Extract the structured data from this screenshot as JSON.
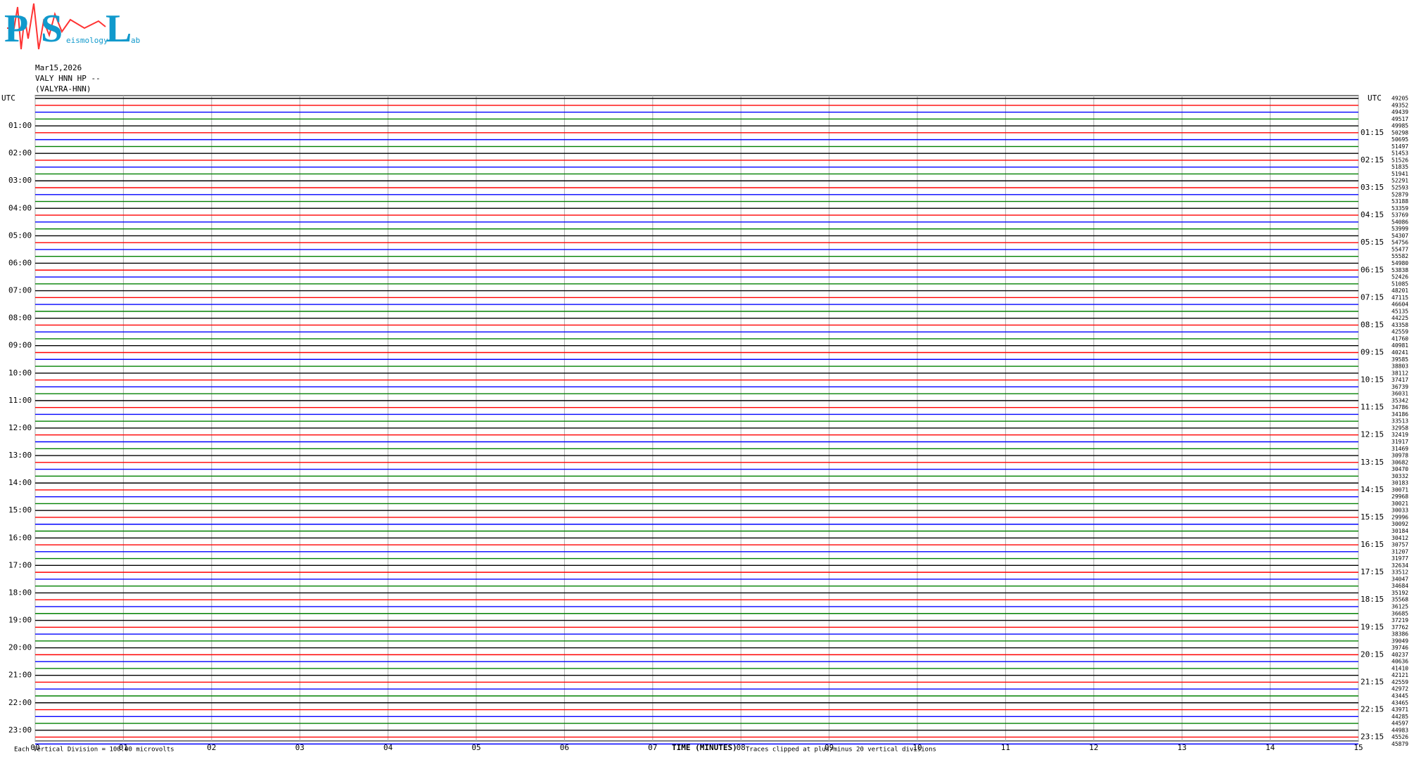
{
  "header": {
    "logo": [
      "P",
      "S",
      "eismology",
      "L",
      "ab"
    ]
  },
  "chart_data": {
    "type": "helicorder",
    "date": "Mar15,2026",
    "station": "VALY HNN HP --",
    "station_name": "(VALYRA-HNN)",
    "time_label": "UTC",
    "left_labels": [
      "01:00",
      "02:00",
      "03:00",
      "04:00",
      "05:00",
      "06:00",
      "07:00",
      "08:00",
      "09:00",
      "10:00",
      "11:00",
      "12:00",
      "13:00",
      "14:00",
      "15:00",
      "16:00",
      "17:00",
      "18:00",
      "19:00",
      "20:00",
      "21:00",
      "22:00",
      "23:00"
    ],
    "right_labels": [
      "01:15",
      "02:15",
      "03:15",
      "04:15",
      "05:15",
      "06:15",
      "07:15",
      "08:15",
      "09:15",
      "10:15",
      "11:15",
      "12:15",
      "13:15",
      "14:15",
      "15:15",
      "16:15",
      "17:15",
      "18:15",
      "19:15",
      "20:15",
      "21:15",
      "22:15",
      "23:15"
    ],
    "xlabel": "TIME (MINUTES)",
    "xlim": [
      0,
      15
    ],
    "xticks": [
      {
        "value": 0,
        "label": "00"
      },
      {
        "value": 1,
        "label": "01"
      },
      {
        "value": 2,
        "label": "02"
      },
      {
        "value": 3,
        "label": "03"
      },
      {
        "value": 4,
        "label": "04"
      },
      {
        "value": 5,
        "label": "05"
      },
      {
        "value": 6,
        "label": "06"
      },
      {
        "value": 7,
        "label": "07"
      },
      {
        "value": 8,
        "label": "08"
      },
      {
        "value": 9,
        "label": "09"
      },
      10,
      11,
      12,
      13,
      14,
      15
    ],
    "trace_colors": [
      "#000000",
      "#ff0000",
      "#0000ff",
      "#008000"
    ],
    "values": [
      49205,
      49352,
      49439,
      49517,
      49985,
      50298,
      50695,
      51497,
      51453,
      51526,
      51835,
      51941,
      52291,
      52593,
      52879,
      53188,
      53359,
      53769,
      54086,
      53999,
      54307,
      54756,
      55477,
      55582,
      54980,
      53838,
      52426,
      51085,
      48201,
      47115,
      46604,
      45135,
      44225,
      43358,
      42559,
      41760,
      40981,
      40241,
      39585,
      38803,
      38112,
      37417,
      36739,
      36031,
      35342,
      34786,
      34186,
      33513,
      32958,
      32419,
      31917,
      31469,
      30978,
      30682,
      30470,
      30332,
      30183,
      30071,
      29968,
      30021,
      30033,
      29996,
      30092,
      30184,
      30412,
      30757,
      31207,
      31977,
      32634,
      33512,
      34047,
      34684,
      35192,
      35568,
      36125,
      36685,
      37219,
      37762,
      38386,
      39049,
      39746,
      40237,
      40636,
      41410,
      42121,
      42559,
      42972,
      43445,
      43465,
      43971,
      44285,
      44597,
      44983,
      45526,
      45879
    ],
    "scale_note": "Each Vertical Division = 100.00 microvolts",
    "clip_note": "Traces clipped at plus/minus 20 vertical divisions"
  }
}
